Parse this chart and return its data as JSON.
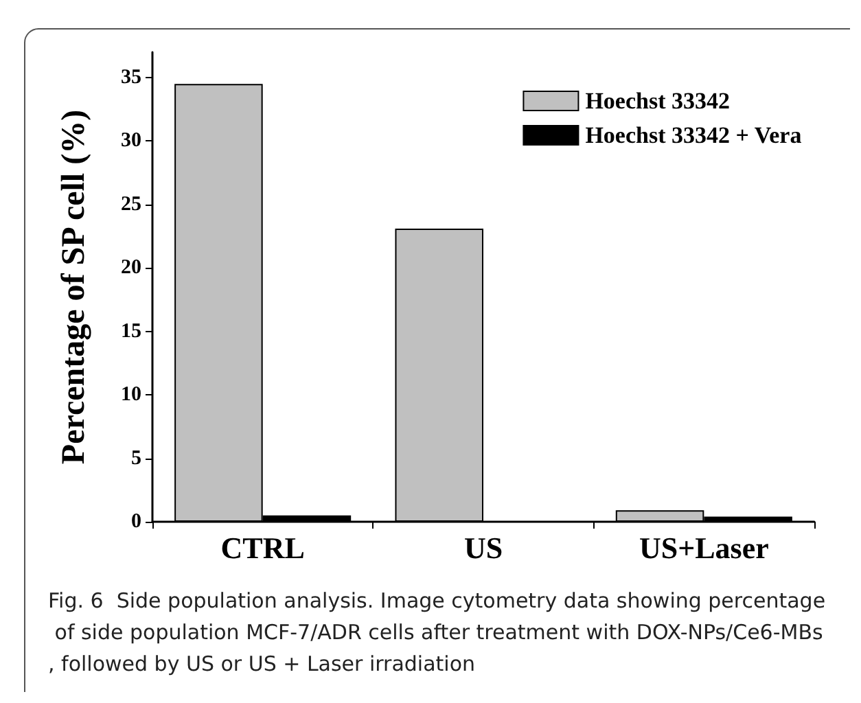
{
  "chart_data": {
    "type": "bar",
    "ylabel": "Percentage of SP cell (%)",
    "categories": [
      "CTRL",
      "US",
      "US+Laser"
    ],
    "series": [
      {
        "name": "Hoechst 33342",
        "color": "#c0c0c0",
        "values": [
          34.5,
          23.1,
          0.9
        ]
      },
      {
        "name": "Hoechst 33342 + Vera",
        "color": "#000000",
        "values": [
          0.5,
          0,
          0.4
        ]
      }
    ],
    "ylim": [
      0,
      37
    ],
    "yticks": [
      0,
      5,
      10,
      15,
      20,
      25,
      30,
      35
    ],
    "grid": false,
    "legend": "top right",
    "annotations": [
      "Fig. 6  Side population analysis. Image cytometry data showing percentage of side population MCF-7/ADR cells after treatment with DOX-NPs/Ce6-MBs, followed by US or US + Laser irradiation"
    ]
  }
}
